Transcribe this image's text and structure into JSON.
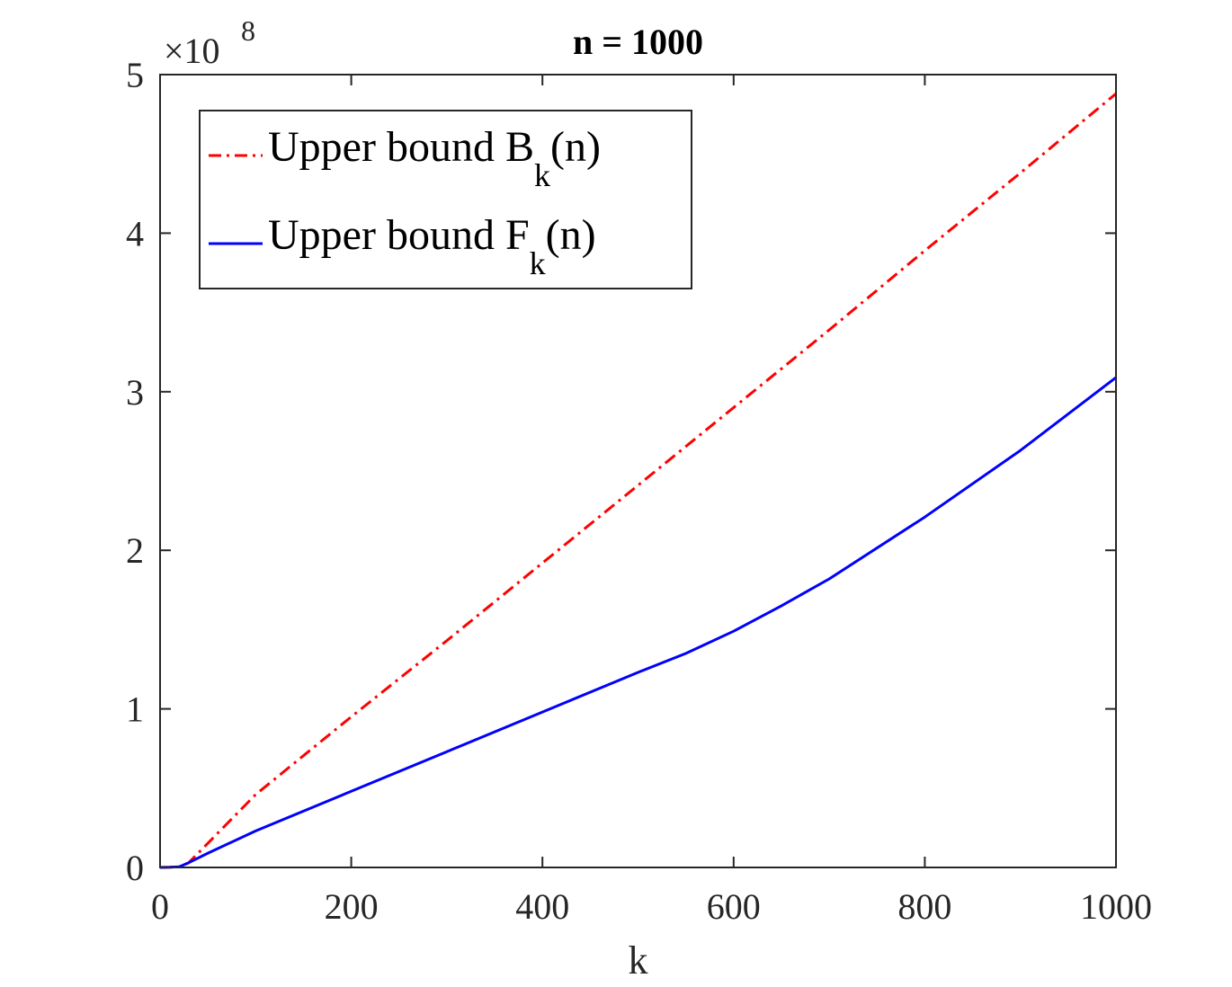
{
  "chart_data": {
    "type": "line",
    "title": "n = 1000",
    "xlabel": "k",
    "ylabel": "",
    "xlim": [
      0,
      1000
    ],
    "ylim": [
      0,
      5
    ],
    "y_exponent_base": "×10",
    "y_exponent_power": "8",
    "x_ticks": [
      0,
      200,
      400,
      600,
      800,
      1000
    ],
    "y_ticks": [
      0,
      1,
      2,
      3,
      4,
      5
    ],
    "legend_position": "top-left",
    "grid": false,
    "series": [
      {
        "name_main": "Upper bound B",
        "name_sub": "k",
        "name_suffix": "(n)",
        "color": "#ff0000",
        "line_style": "dash-dot",
        "x": [
          0,
          10,
          20,
          30,
          100,
          200,
          300,
          400,
          500,
          600,
          700,
          800,
          900,
          1000
        ],
        "values": [
          0,
          0.001,
          0.004,
          0.03,
          0.46,
          0.95,
          1.43,
          1.92,
          2.41,
          2.9,
          3.39,
          3.89,
          4.38,
          4.88
        ]
      },
      {
        "name_main": "Upper bound F",
        "name_sub": "k",
        "name_suffix": "(n)",
        "color": "#0000ff",
        "line_style": "solid",
        "x": [
          0,
          10,
          20,
          30,
          50,
          100,
          200,
          300,
          400,
          500,
          550,
          600,
          650,
          700,
          800,
          900,
          1000
        ],
        "values": [
          0,
          0.001,
          0.004,
          0.03,
          0.09,
          0.23,
          0.48,
          0.73,
          0.98,
          1.23,
          1.35,
          1.49,
          1.65,
          1.82,
          2.21,
          2.63,
          3.09
        ]
      }
    ]
  }
}
